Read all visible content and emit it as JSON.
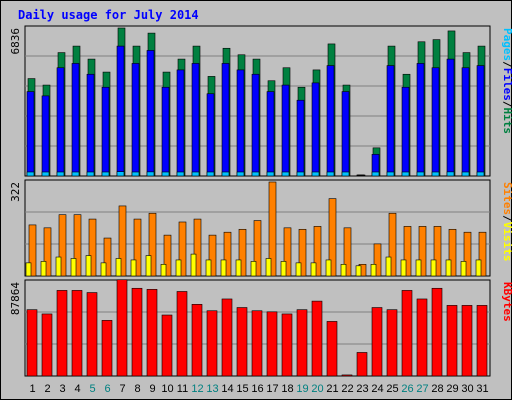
{
  "chart_data": {
    "type": "bar",
    "title": "Daily usage for July 2014",
    "colors": {
      "background": "#c0c0c0",
      "panel": "#c0c0c0",
      "grid": "#808080",
      "hits": "#008040",
      "files": "#0000ff",
      "pages": "#00c0ff",
      "visits": "#ffff00",
      "sites": "#ff8000",
      "kbytes": "#ff0000",
      "title": "#0000ff",
      "weekend_label": "#008080",
      "weekday_label": "#000000",
      "legend_sep": "#000000"
    },
    "days": [
      "1",
      "2",
      "3",
      "4",
      "5",
      "6",
      "7",
      "8",
      "9",
      "10",
      "11",
      "12",
      "13",
      "14",
      "15",
      "16",
      "17",
      "18",
      "19",
      "20",
      "21",
      "22",
      "23",
      "24",
      "25",
      "26",
      "27",
      "28",
      "29",
      "30",
      "31"
    ],
    "weekend_days": [
      "5",
      "6",
      "12",
      "13",
      "19",
      "20",
      "26",
      "27"
    ],
    "panels": [
      {
        "id": "hits-files-pages",
        "ymax_label": "6836",
        "ymax": 6836,
        "legend": [
          "Pages",
          "/",
          "Files",
          "/",
          "Hits"
        ],
        "series": [
          {
            "name": "Hits",
            "values": [
              4500,
              4200,
              5700,
              6000,
              5400,
              4800,
              6836,
              6000,
              6600,
              4800,
              5400,
              6000,
              4600,
              5900,
              5600,
              5400,
              4400,
              5000,
              4100,
              4900,
              6100,
              4200,
              0,
              1300,
              6000,
              4700,
              6200,
              6300,
              6700,
              5700,
              6000
            ]
          },
          {
            "name": "Files",
            "values": [
              3900,
              3700,
              5000,
              5200,
              4700,
              4100,
              6000,
              5200,
              5800,
              4100,
              4900,
              5200,
              3800,
              5200,
              4900,
              4700,
              3900,
              4200,
              3500,
              4300,
              5100,
              3900,
              0,
              1000,
              5100,
              4100,
              5200,
              5000,
              5400,
              5000,
              5100
            ]
          },
          {
            "name": "Pages",
            "values": [
              150,
              130,
              170,
              180,
              150,
              140,
              200,
              170,
              190,
              130,
              160,
              170,
              130,
              170,
              160,
              160,
              130,
              150,
              120,
              140,
              180,
              130,
              0,
              60,
              170,
              140,
              180,
              180,
              190,
              170,
              170
            ]
          }
        ]
      },
      {
        "id": "sites-visits",
        "ymax_label": "322",
        "ymax": 322,
        "legend": [
          "Sites",
          "/",
          "Visits"
        ],
        "series": [
          {
            "name": "Sites",
            "values": [
              175,
              165,
              210,
              210,
              195,
              130,
              240,
              195,
              215,
              140,
              185,
              195,
              140,
              150,
              160,
              190,
              322,
              165,
              160,
              170,
              265,
              165,
              40,
              110,
              215,
              170,
              170,
              170,
              160,
              150,
              150
            ]
          },
          {
            "name": "Visits",
            "values": [
              45,
              50,
              65,
              60,
              70,
              45,
              60,
              55,
              70,
              40,
              55,
              75,
              55,
              55,
              55,
              50,
              60,
              50,
              45,
              45,
              55,
              40,
              35,
              40,
              65,
              55,
              55,
              55,
              55,
              50,
              55
            ]
          }
        ]
      },
      {
        "id": "kbytes",
        "ymax_label": "87864",
        "ymax": 87864,
        "legend": [
          "KBytes"
        ],
        "series": [
          {
            "name": "KBytes",
            "values": [
              62000,
              58000,
              80000,
              80000,
              78000,
              52000,
              90000,
              82000,
              81000,
              57000,
              79000,
              67000,
              61000,
              72000,
              64000,
              61000,
              60000,
              58000,
              62000,
              70000,
              51000,
              1000,
              22000,
              64000,
              62000,
              80000,
              72000,
              82000,
              66000,
              66000,
              66000
            ]
          }
        ]
      }
    ]
  }
}
